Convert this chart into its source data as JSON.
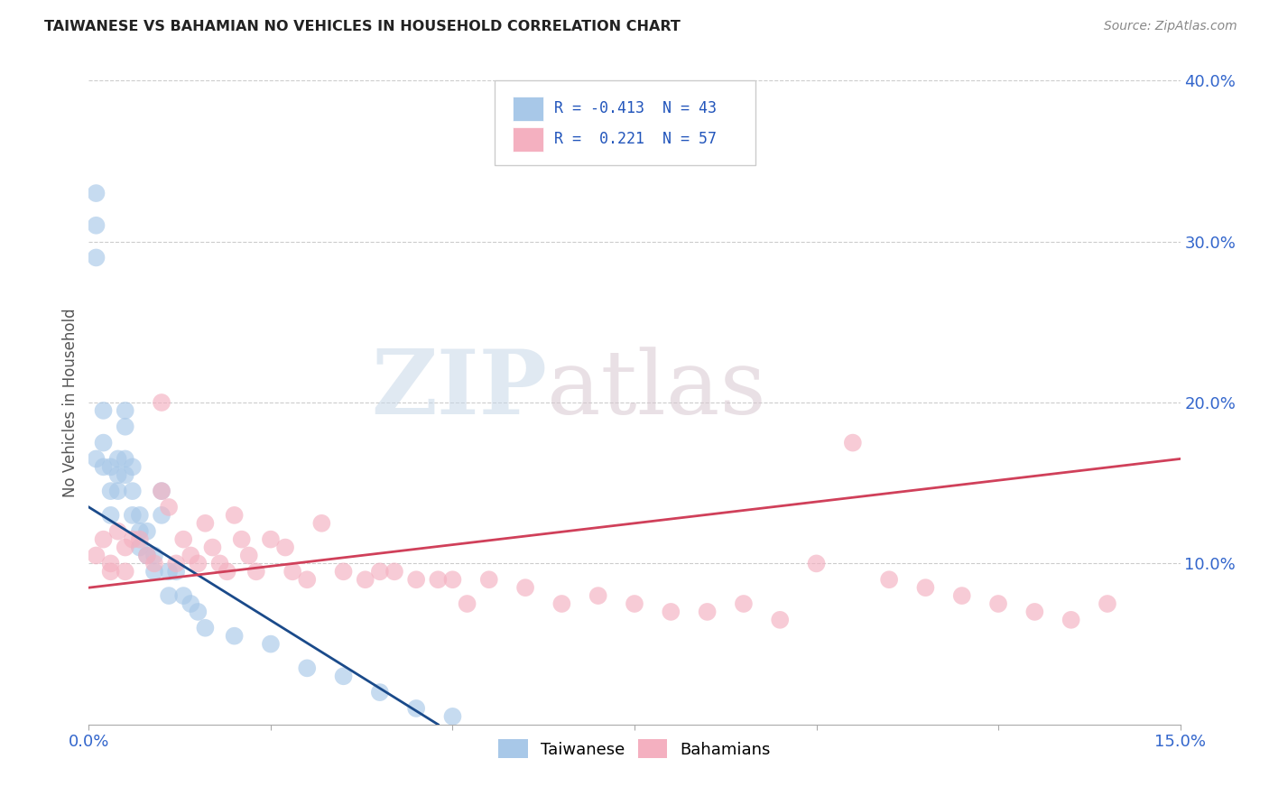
{
  "title": "TAIWANESE VS BAHAMIAN NO VEHICLES IN HOUSEHOLD CORRELATION CHART",
  "source": "Source: ZipAtlas.com",
  "ylabel": "No Vehicles in Household",
  "xlabel_taiwanese": "Taiwanese",
  "xlabel_bahamian": "Bahamians",
  "xmin": 0.0,
  "xmax": 0.15,
  "ymin": 0.0,
  "ymax": 0.4,
  "xtick_vals": [
    0.0,
    0.025,
    0.05,
    0.075,
    0.1,
    0.125,
    0.15
  ],
  "xtick_labels": [
    "0.0%",
    "",
    "",
    "",
    "",
    "",
    "15.0%"
  ],
  "ytick_vals_right": [
    0.0,
    0.1,
    0.2,
    0.3,
    0.4
  ],
  "ytick_labels_right": [
    "",
    "10.0%",
    "20.0%",
    "30.0%",
    "40.0%"
  ],
  "gridline_vals": [
    0.1,
    0.2,
    0.3,
    0.4
  ],
  "taiwanese_color": "#a8c8e8",
  "bahamian_color": "#f4b0c0",
  "taiwanese_line_color": "#1a4a8a",
  "bahamian_line_color": "#d0405a",
  "legend_text_1": "R = -0.413  N = 43",
  "legend_text_2": "R =  0.221  N = 57",
  "watermark_zip": "ZIP",
  "watermark_atlas": "atlas",
  "tw_line_x0": 0.0,
  "tw_line_x1": 0.048,
  "bah_line_x0": 0.0,
  "bah_line_x1": 0.15,
  "tw_line_y0": 0.135,
  "tw_line_y1": 0.0,
  "bah_line_y0": 0.085,
  "bah_line_y1": 0.165,
  "taiwanese_x": [
    0.001,
    0.001,
    0.001,
    0.001,
    0.002,
    0.002,
    0.002,
    0.003,
    0.003,
    0.003,
    0.004,
    0.004,
    0.004,
    0.005,
    0.005,
    0.005,
    0.005,
    0.006,
    0.006,
    0.006,
    0.007,
    0.007,
    0.007,
    0.008,
    0.008,
    0.009,
    0.009,
    0.01,
    0.01,
    0.011,
    0.011,
    0.012,
    0.013,
    0.014,
    0.015,
    0.016,
    0.02,
    0.025,
    0.03,
    0.035,
    0.04,
    0.045,
    0.05
  ],
  "taiwanese_y": [
    0.33,
    0.31,
    0.29,
    0.165,
    0.195,
    0.175,
    0.16,
    0.16,
    0.145,
    0.13,
    0.165,
    0.155,
    0.145,
    0.195,
    0.185,
    0.165,
    0.155,
    0.16,
    0.145,
    0.13,
    0.13,
    0.12,
    0.11,
    0.12,
    0.105,
    0.105,
    0.095,
    0.145,
    0.13,
    0.095,
    0.08,
    0.095,
    0.08,
    0.075,
    0.07,
    0.06,
    0.055,
    0.05,
    0.035,
    0.03,
    0.02,
    0.01,
    0.005
  ],
  "bahamian_x": [
    0.001,
    0.002,
    0.003,
    0.003,
    0.004,
    0.005,
    0.005,
    0.006,
    0.007,
    0.008,
    0.009,
    0.01,
    0.01,
    0.011,
    0.012,
    0.013,
    0.014,
    0.015,
    0.016,
    0.017,
    0.018,
    0.019,
    0.02,
    0.021,
    0.022,
    0.023,
    0.025,
    0.027,
    0.028,
    0.03,
    0.032,
    0.035,
    0.038,
    0.04,
    0.042,
    0.045,
    0.048,
    0.05,
    0.052,
    0.055,
    0.06,
    0.065,
    0.07,
    0.075,
    0.08,
    0.085,
    0.09,
    0.095,
    0.1,
    0.105,
    0.11,
    0.115,
    0.12,
    0.125,
    0.13,
    0.135,
    0.14
  ],
  "bahamian_y": [
    0.105,
    0.115,
    0.1,
    0.095,
    0.12,
    0.11,
    0.095,
    0.115,
    0.115,
    0.105,
    0.1,
    0.2,
    0.145,
    0.135,
    0.1,
    0.115,
    0.105,
    0.1,
    0.125,
    0.11,
    0.1,
    0.095,
    0.13,
    0.115,
    0.105,
    0.095,
    0.115,
    0.11,
    0.095,
    0.09,
    0.125,
    0.095,
    0.09,
    0.095,
    0.095,
    0.09,
    0.09,
    0.09,
    0.075,
    0.09,
    0.085,
    0.075,
    0.08,
    0.075,
    0.07,
    0.07,
    0.075,
    0.065,
    0.1,
    0.175,
    0.09,
    0.085,
    0.08,
    0.075,
    0.07,
    0.065,
    0.075
  ]
}
